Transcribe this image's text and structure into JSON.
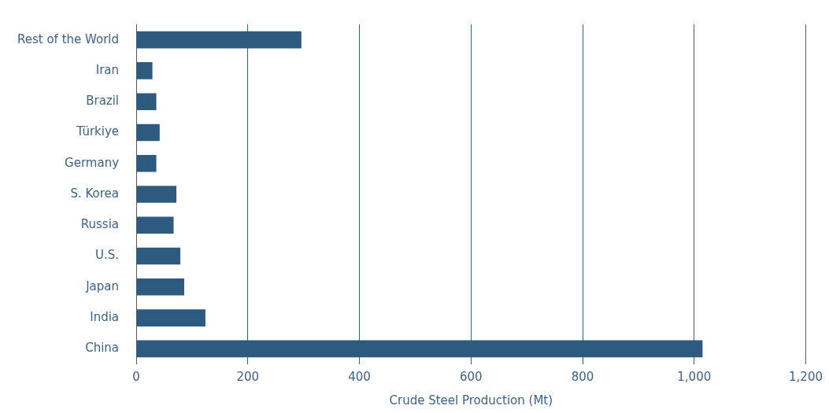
{
  "chart_data": {
    "type": "bar",
    "orientation": "horizontal",
    "xlabel": "Crude Steel Production (Mt)",
    "categories": [
      "Rest of the World",
      "Iran",
      "Brazil",
      "Türkiye",
      "Germany",
      "S. Korea",
      "Russia",
      "U.S.",
      "Japan",
      "India",
      "China"
    ],
    "values": [
      296,
      29,
      36,
      42,
      36,
      72,
      67,
      79,
      86,
      124,
      1015
    ],
    "color": "#2f5a80",
    "xlim": [
      0,
      1200
    ],
    "xticks": [
      0,
      200,
      400,
      600,
      800,
      {
        "value": 1000,
        "label": "1,000"
      },
      {
        "value": 1200,
        "label": "1,200"
      }
    ],
    "grid": "x",
    "legend": false
  }
}
